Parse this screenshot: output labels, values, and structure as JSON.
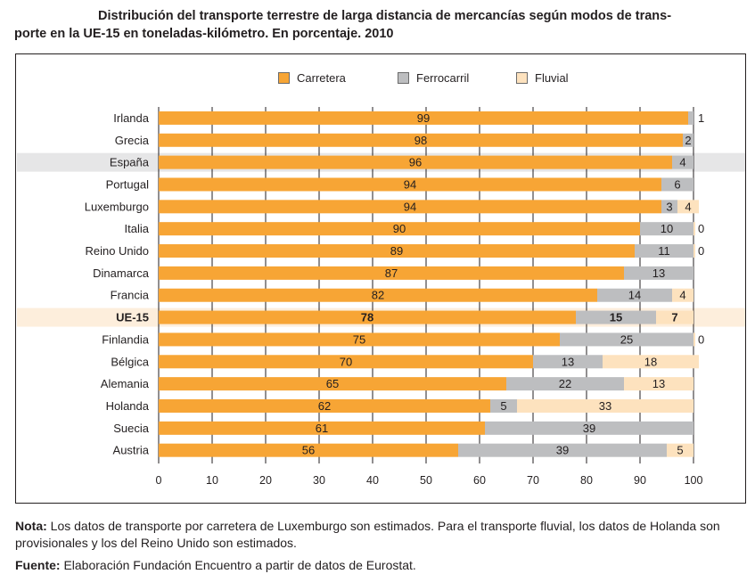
{
  "title": {
    "line1": "Distribución del transporte terrestre de larga distancia de mercancías según modos de trans-",
    "line2": "porte en la UE-15 en toneladas-kilómetro. En porcentaje. 2010"
  },
  "note": {
    "label": "Nota:",
    "text": " Los datos de transporte por carretera de Luxemburgo son estimados. Para el transporte fluvial, los datos de Holanda son provisionales y los del Reino Unido son estimados."
  },
  "source": {
    "label": "Fuente:",
    "text": " Elaboración Fundación Encuentro a partir de datos de Eurostat."
  },
  "colors": {
    "carretera": "#f7a535",
    "ferrocarril": "#bdbec0",
    "fluvial": "#fde2be",
    "highlight_spain": "#e6e6e7",
    "highlight_eu": "#fdeedc"
  },
  "chart_data": {
    "type": "bar",
    "orientation": "horizontal",
    "stacked": true,
    "title": "Distribución del transporte terrestre de larga distancia de mercancías según modos de transporte en la UE-15 en toneladas-kilómetro. En porcentaje. 2010",
    "xlabel": "",
    "ylabel": "",
    "xlim": [
      0,
      100
    ],
    "xticks": [
      0,
      10,
      20,
      30,
      40,
      50,
      60,
      70,
      80,
      90,
      100
    ],
    "grid": true,
    "legend": "top-center",
    "categories": [
      "Irlanda",
      "Grecia",
      "España",
      "Portugal",
      "Luxemburgo",
      "Italia",
      "Reino Unido",
      "Dinamarca",
      "Francia",
      "UE-15",
      "Finlandia",
      "Bélgica",
      "Alemania",
      "Holanda",
      "Suecia",
      "Austria"
    ],
    "highlighted": {
      "España": "highlight_spain",
      "UE-15": "highlight_eu"
    },
    "bold_categories": [
      "UE-15"
    ],
    "series": [
      {
        "name": "Carretera",
        "color_key": "carretera",
        "values": [
          99,
          98,
          96,
          94,
          94,
          90,
          89,
          87,
          82,
          78,
          75,
          70,
          65,
          62,
          61,
          56
        ],
        "labels": [
          "99",
          "98",
          "96",
          "94",
          "94",
          "90",
          "89",
          "87",
          "82",
          "78",
          "75",
          "70",
          "65",
          "62",
          "61",
          "56"
        ]
      },
      {
        "name": "Ferrocarril",
        "color_key": "ferrocarril",
        "values": [
          1,
          2,
          4,
          6,
          3,
          10,
          11,
          13,
          14,
          15,
          25,
          13,
          22,
          5,
          39,
          39
        ],
        "labels": [
          "1",
          "2",
          "4",
          "6",
          "3",
          "10",
          "11",
          "13",
          "14",
          "15",
          "25",
          "13",
          "22",
          "5",
          "39",
          "39"
        ]
      },
      {
        "name": "Fluvial",
        "color_key": "fluvial",
        "values": [
          0,
          0,
          0,
          0,
          4,
          0,
          0,
          0,
          4,
          7,
          0,
          18,
          13,
          33,
          0,
          5
        ],
        "labels": [
          "",
          "",
          "",
          "",
          "4",
          "0",
          "0",
          "",
          "4",
          "7",
          "0",
          "18",
          "13",
          "33",
          "",
          "5"
        ]
      }
    ]
  }
}
